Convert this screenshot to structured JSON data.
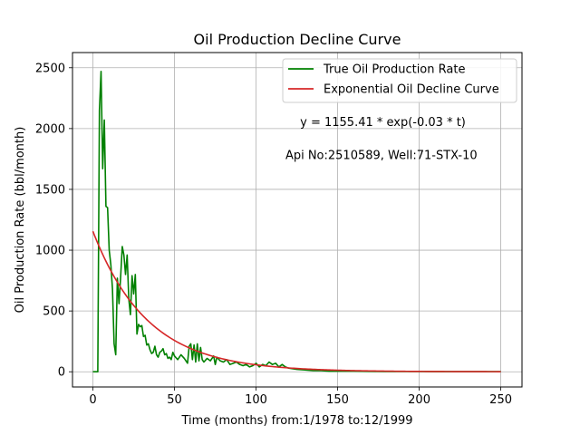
{
  "chart_data": {
    "type": "line",
    "title": "Oil Production Decline Curve",
    "xlabel": "Time (months) from:1/1978 to:12/1999",
    "ylabel": "Oil Production Rate (bbl/month)",
    "xlim": [
      -12.5,
      263
    ],
    "ylim": [
      -125,
      2625
    ],
    "xticks": [
      0,
      50,
      100,
      150,
      200,
      250
    ],
    "yticks": [
      0,
      500,
      1000,
      1500,
      2000,
      2500
    ],
    "grid": true,
    "legend_position": "top-right",
    "series": [
      {
        "name": "True Oil Production Rate",
        "color": "#008000",
        "x": [
          0,
          1,
          2,
          3,
          4,
          5,
          6,
          7,
          8,
          9,
          10,
          11,
          12,
          13,
          14,
          15,
          16,
          17,
          18,
          19,
          20,
          21,
          22,
          23,
          24,
          25,
          26,
          27,
          28,
          29,
          30,
          31,
          32,
          33,
          34,
          35,
          36,
          37,
          38,
          39,
          40,
          41,
          42,
          43,
          44,
          45,
          46,
          47,
          48,
          49,
          50,
          52,
          54,
          56,
          58,
          59,
          60,
          61,
          62,
          63,
          64,
          65,
          66,
          67,
          68,
          70,
          72,
          74,
          75,
          76,
          78,
          80,
          82,
          84,
          86,
          88,
          90,
          92,
          94,
          96,
          98,
          100,
          102,
          104,
          106,
          108,
          110,
          112,
          114,
          116,
          118,
          120,
          125,
          130,
          135,
          140,
          145,
          150,
          160,
          170,
          180,
          190,
          200,
          210,
          220,
          230,
          240,
          250
        ],
        "y": [
          0,
          0,
          0,
          0,
          2150,
          2470,
          1670,
          2070,
          1360,
          1350,
          1000,
          880,
          680,
          230,
          140,
          770,
          560,
          780,
          1030,
          960,
          800,
          960,
          600,
          470,
          790,
          640,
          800,
          310,
          390,
          370,
          380,
          290,
          300,
          220,
          230,
          180,
          150,
          160,
          210,
          140,
          120,
          160,
          170,
          190,
          140,
          150,
          110,
          120,
          100,
          160,
          130,
          100,
          140,
          110,
          70,
          210,
          230,
          100,
          220,
          80,
          230,
          90,
          200,
          100,
          80,
          110,
          90,
          130,
          60,
          120,
          90,
          80,
          100,
          60,
          70,
          80,
          60,
          50,
          60,
          40,
          50,
          70,
          40,
          60,
          50,
          80,
          60,
          70,
          40,
          60,
          40,
          30,
          20,
          15,
          10,
          10,
          5,
          5,
          5,
          3,
          2,
          2,
          2,
          1,
          1,
          1,
          1,
          1
        ]
      },
      {
        "name": "Exponential Oil Decline Curve",
        "color": "#d62728",
        "equation": {
          "a": 1155.41,
          "b": -0.03
        },
        "x_range": [
          0,
          250
        ]
      }
    ],
    "annotations": [
      {
        "text": "y = 1155.41 * exp(-0.03 * t)",
        "x": 127,
        "y": 2020
      },
      {
        "text": "Api No:2510589, Well:71-STX-10",
        "x": 118,
        "y": 1750
      }
    ]
  }
}
